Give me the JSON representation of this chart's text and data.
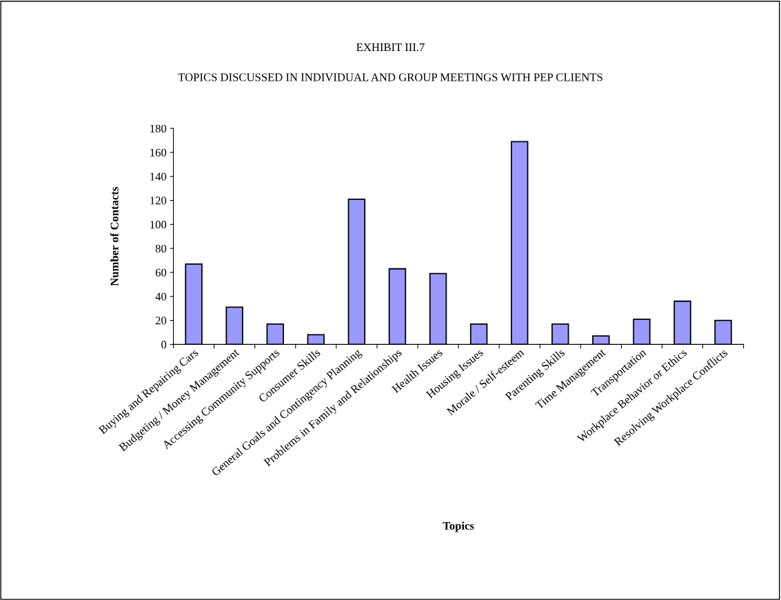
{
  "chart_data": {
    "type": "bar",
    "title": "EXHIBIT III.7",
    "subtitle": "TOPICS DISCUSSED IN INDIVIDUAL AND GROUP MEETINGS WITH PEP CLIENTS",
    "xlabel": "Topics",
    "ylabel": "Number of Contacts",
    "categories": [
      "Buying and Repairing Cars",
      "Budgeting / Money Management",
      "Accessing Community Supports",
      "Consumer Skills",
      "General Goals and Contingency Planning",
      "Problems in Family and Relationships",
      "Health Issues",
      "Housing Issues",
      "Morale / Self-esteem",
      "Parenting Skills",
      "Time Management",
      "Transportation",
      "Workplace Behavior or Ethics",
      "Resolving Workplace Conflicts"
    ],
    "values": [
      67,
      31,
      17,
      8,
      121,
      63,
      59,
      17,
      169,
      17,
      7,
      21,
      36,
      20
    ],
    "color": "#9999ff",
    "ylim": [
      0,
      180
    ],
    "yticks": [
      0,
      20,
      40,
      60,
      80,
      100,
      120,
      140,
      160,
      180
    ],
    "grid": false,
    "legend": false
  }
}
